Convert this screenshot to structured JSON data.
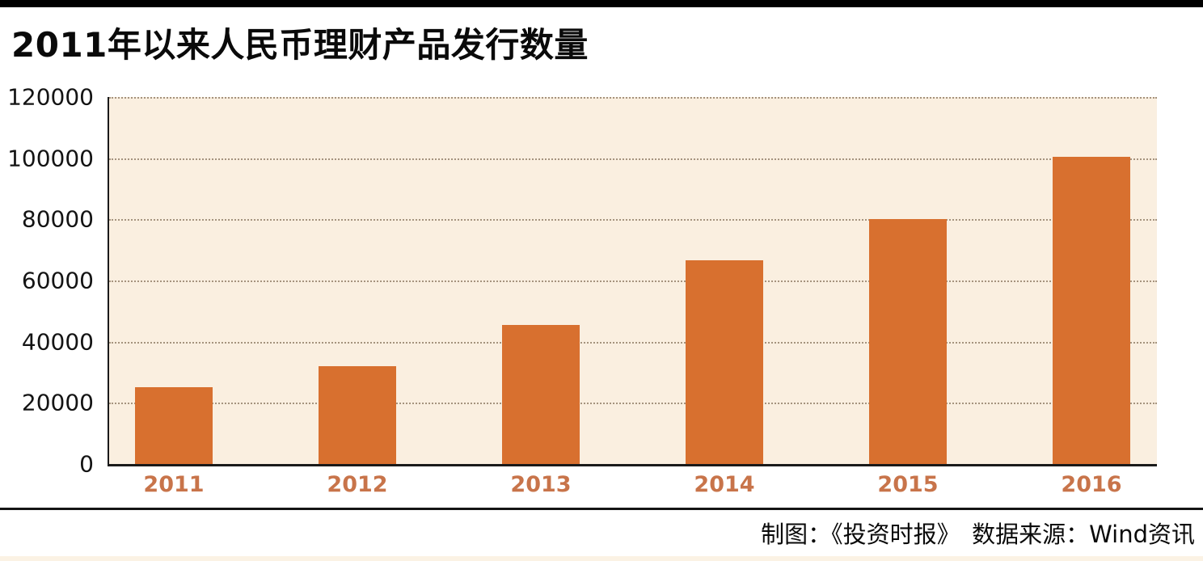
{
  "chart_data": {
    "type": "bar",
    "title": "2011年以来人民币理财产品发行数量",
    "categories": [
      "2011",
      "2012",
      "2013",
      "2014",
      "2015",
      "2016"
    ],
    "values": [
      25000,
      32000,
      45500,
      66500,
      80000,
      100500
    ],
    "xlabel": "",
    "ylabel": "",
    "ylim": [
      0,
      120000
    ],
    "yticks": [
      0,
      20000,
      40000,
      60000,
      80000,
      100000,
      120000
    ],
    "ytick_labels": [
      "120000",
      "100000",
      "80000",
      "60000",
      "40000",
      "20000",
      "0"
    ],
    "grid": "horizontal dotted",
    "legend": "none",
    "bar_color": "#d8702f",
    "plot_background_color": "#faefe0",
    "xtick_color": "#c8744a",
    "credit": "制图：《投资时报》　数据来源：Wind资讯"
  }
}
